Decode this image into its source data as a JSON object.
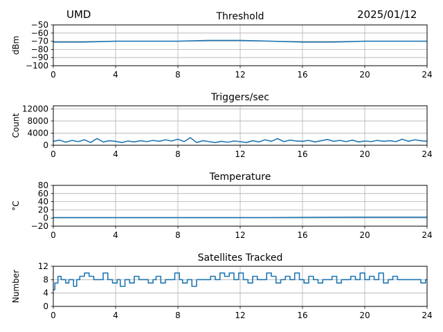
{
  "header": {
    "station": "UMD",
    "date": "2025/01/12"
  },
  "colors": {
    "line": "#1f77b4",
    "grid": "#b0b0b0",
    "axis": "#000000"
  },
  "chart_data": [
    {
      "type": "line",
      "title": "Threshold",
      "ylabel": "dBm",
      "xlabel": "",
      "xlim": [
        0,
        24
      ],
      "ylim": [
        -100,
        -50
      ],
      "xticks": [
        0,
        4,
        8,
        12,
        16,
        20,
        24
      ],
      "yticks": [
        -50,
        -60,
        -70,
        -80,
        -90,
        -100
      ],
      "ytick_labels": [
        "−50",
        "−60",
        "−70",
        "−80",
        "−90",
        "−100"
      ],
      "grid": true,
      "series": [
        {
          "x": [
            0,
            2,
            4,
            6,
            8,
            10,
            12,
            14,
            16,
            18,
            20,
            22,
            24
          ],
          "y": [
            -71,
            -71,
            -70,
            -70,
            -70,
            -69,
            -69,
            -70,
            -71,
            -71,
            -70,
            -70,
            -70
          ]
        }
      ]
    },
    {
      "type": "line",
      "title": "Triggers/sec",
      "ylabel": "Count",
      "xlabel": "",
      "xlim": [
        0,
        24
      ],
      "ylim": [
        0,
        13000
      ],
      "xticks": [
        0,
        4,
        8,
        12,
        16,
        20,
        24
      ],
      "yticks": [
        0,
        4000,
        8000,
        12000
      ],
      "ytick_labels": [
        "0",
        "4000",
        "8000",
        "12000"
      ],
      "grid": true,
      "series": [
        {
          "x": [
            0,
            0.4,
            0.8,
            1.2,
            1.6,
            2.0,
            2.4,
            2.8,
            3.2,
            3.6,
            4.0,
            4.4,
            4.8,
            5.2,
            5.6,
            6.0,
            6.4,
            6.8,
            7.2,
            7.6,
            8.0,
            8.4,
            8.8,
            9.2,
            9.6,
            10.0,
            10.4,
            10.8,
            11.2,
            11.6,
            12.0,
            12.4,
            12.8,
            13.2,
            13.6,
            14.0,
            14.4,
            14.8,
            15.2,
            15.6,
            16.0,
            16.4,
            16.8,
            17.2,
            17.6,
            18.0,
            18.4,
            18.8,
            19.2,
            19.6,
            20.0,
            20.4,
            20.8,
            21.2,
            21.6,
            22.0,
            22.4,
            22.8,
            23.2,
            23.6,
            24.0
          ],
          "y": [
            1300,
            1700,
            1000,
            1600,
            1200,
            1800,
            900,
            2200,
            1100,
            1500,
            1300,
            900,
            1400,
            1100,
            1500,
            1200,
            1600,
            1300,
            1800,
            1400,
            2000,
            1200,
            2500,
            900,
            1500,
            1200,
            900,
            1300,
            1000,
            1400,
            1200,
            900,
            1500,
            1100,
            1800,
            1300,
            2200,
            1200,
            1700,
            1400,
            1300,
            1600,
            1100,
            1500,
            1900,
            1300,
            1600,
            1200,
            1700,
            1100,
            1400,
            1200,
            1600,
            1300,
            1500,
            1200,
            2000,
            1300,
            1800,
            1500,
            1300
          ]
        }
      ]
    },
    {
      "type": "line",
      "title": "Temperature",
      "ylabel": "°C",
      "xlabel": "",
      "xlim": [
        0,
        24
      ],
      "ylim": [
        -20,
        80
      ],
      "xticks": [
        0,
        4,
        8,
        12,
        16,
        20,
        24
      ],
      "yticks": [
        -20,
        0,
        20,
        40,
        60,
        80
      ],
      "ytick_labels": [
        "−20",
        "0",
        "20",
        "40",
        "60",
        "80"
      ],
      "grid": true,
      "series": [
        {
          "x": [
            0,
            4,
            8,
            12,
            16,
            20,
            24
          ],
          "y": [
            1,
            1,
            1,
            1,
            1.5,
            2,
            2
          ]
        }
      ]
    },
    {
      "type": "line",
      "title": "Satellites Tracked",
      "ylabel": "Number",
      "xlabel": "",
      "xlim": [
        0,
        24
      ],
      "ylim": [
        0,
        12
      ],
      "xticks": [
        0,
        4,
        8,
        12,
        16,
        20,
        24
      ],
      "yticks": [
        0,
        4,
        8,
        12
      ],
      "ytick_labels": [
        "0",
        "4",
        "8",
        "12"
      ],
      "grid": true,
      "step": true,
      "series": [
        {
          "x": [
            0,
            0.1,
            0.3,
            0.5,
            0.8,
            1.0,
            1.3,
            1.5,
            1.7,
            2.0,
            2.3,
            2.6,
            2.9,
            3.2,
            3.5,
            3.8,
            4.1,
            4.3,
            4.6,
            4.9,
            5.2,
            5.5,
            5.8,
            6.1,
            6.4,
            6.6,
            6.9,
            7.2,
            7.5,
            7.8,
            8.1,
            8.3,
            8.6,
            8.9,
            9.2,
            9.5,
            9.8,
            10.1,
            10.4,
            10.7,
            11.0,
            11.3,
            11.6,
            11.9,
            12.2,
            12.5,
            12.8,
            13.1,
            13.4,
            13.7,
            14.0,
            14.3,
            14.6,
            14.9,
            15.2,
            15.5,
            15.8,
            16.1,
            16.4,
            16.7,
            17.0,
            17.3,
            17.6,
            17.9,
            18.2,
            18.5,
            18.8,
            19.1,
            19.4,
            19.7,
            20.0,
            20.3,
            20.6,
            20.9,
            21.2,
            21.5,
            21.8,
            22.1,
            22.4,
            22.7,
            23.0,
            23.3,
            23.6,
            23.9,
            24.0
          ],
          "y": [
            5,
            7,
            9,
            8,
            7,
            8,
            6,
            8,
            9,
            10,
            9,
            8,
            8,
            10,
            8,
            7,
            8,
            6,
            8,
            7,
            9,
            8,
            8,
            7,
            8,
            9,
            7,
            8,
            8,
            10,
            8,
            7,
            8,
            6,
            8,
            8,
            8,
            9,
            8,
            10,
            9,
            10,
            8,
            10,
            8,
            7,
            9,
            8,
            8,
            10,
            9,
            7,
            8,
            9,
            8,
            10,
            8,
            7,
            9,
            8,
            7,
            8,
            8,
            9,
            7,
            8,
            8,
            9,
            8,
            10,
            8,
            9,
            8,
            10,
            7,
            8,
            9,
            8,
            8,
            8,
            8,
            8,
            7,
            8,
            8
          ]
        }
      ]
    }
  ]
}
